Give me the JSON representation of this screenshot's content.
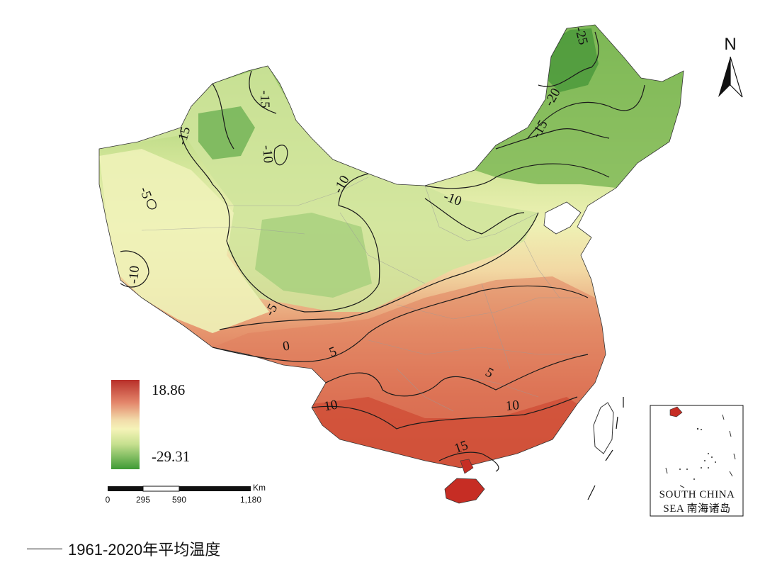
{
  "legend": {
    "max": "18.86",
    "min": "-29.31",
    "colors": [
      "#b8302a",
      "#e3856a",
      "#f2dcaa",
      "#f5f3b8",
      "#c6e08f",
      "#3e9a35"
    ]
  },
  "contours": [
    {
      "label": "-25"
    },
    {
      "label": "-20"
    },
    {
      "label": "-15"
    },
    {
      "label": "-15"
    },
    {
      "label": "-15"
    },
    {
      "label": "-10"
    },
    {
      "label": "-10"
    },
    {
      "label": "-10"
    },
    {
      "label": "-10"
    },
    {
      "label": "-5"
    },
    {
      "label": "-5"
    },
    {
      "label": "0"
    },
    {
      "label": "5"
    },
    {
      "label": "5"
    },
    {
      "label": "10"
    },
    {
      "label": "10"
    },
    {
      "label": "15"
    }
  ],
  "north": {
    "label": "N"
  },
  "scale_bar": {
    "unit": "Km",
    "ticks": [
      "0",
      "295",
      "590",
      "1,180"
    ]
  },
  "inset": {
    "line1": "SOUTH CHINA",
    "line2": "SEA 南海诸岛"
  },
  "caption": "1961-2020年平均温度"
}
